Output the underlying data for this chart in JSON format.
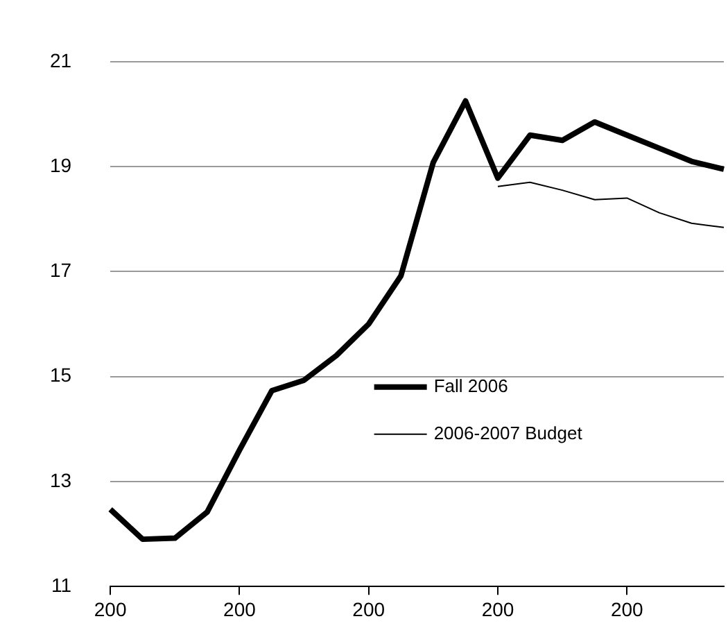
{
  "chart_data": {
    "type": "line",
    "categories": [
      "200",
      null,
      null,
      null,
      "200",
      null,
      null,
      null,
      "200",
      null,
      null,
      null,
      "200",
      null,
      null,
      null,
      "200",
      null,
      null,
      null
    ],
    "series": [
      {
        "name": "Fall 2006",
        "color": "#000000",
        "values": [
          12.47,
          11.9,
          11.92,
          12.42,
          13.6,
          14.73,
          14.93,
          15.4,
          16.0,
          16.92,
          19.08,
          20.25,
          18.78,
          19.6,
          19.5,
          19.85,
          19.6,
          19.35,
          19.1,
          18.95
        ]
      },
      {
        "name": "2006-2007 Budget",
        "color": "#000000",
        "values": [
          null,
          null,
          null,
          null,
          null,
          null,
          null,
          null,
          null,
          null,
          null,
          null,
          18.62,
          18.7,
          18.55,
          18.37,
          18.4,
          18.12,
          17.92,
          17.84
        ]
      }
    ],
    "ylim": [
      11,
      21
    ],
    "yticks": [
      11,
      13,
      15,
      17,
      19,
      21
    ],
    "grid": "y",
    "legend": "center",
    "marker": "none",
    "line_style": "solid"
  }
}
